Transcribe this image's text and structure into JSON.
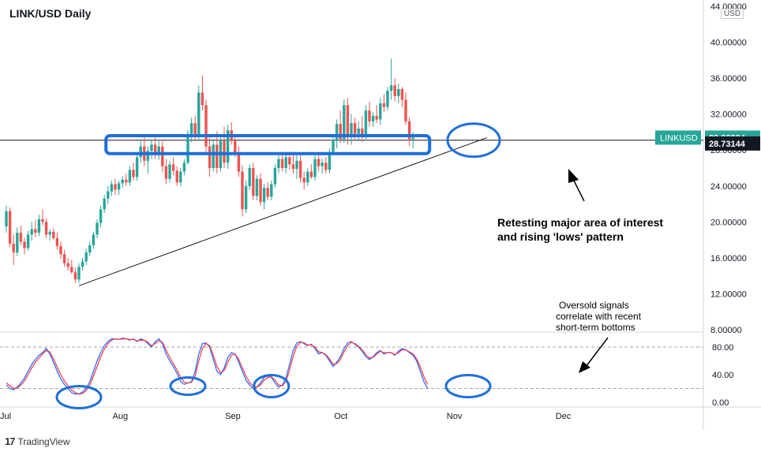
{
  "header": {
    "title": "LINK/USD Daily",
    "currency_badge": "USD"
  },
  "footer": {
    "brand": "TradingView"
  },
  "chart_data": {
    "type": "candlestick",
    "symbol": "LINKUSD",
    "timeframe": "Daily",
    "price_axis": {
      "ylim": [
        8,
        44
      ],
      "ticks": [
        "44.00000",
        "40.00000",
        "36.00000",
        "32.00000",
        "28.00000",
        "24.00000",
        "20.00000",
        "16.00000",
        "12.00000",
        "8.00000"
      ],
      "tick_values": [
        44,
        40,
        36,
        32,
        28,
        24,
        20,
        16,
        12,
        8
      ]
    },
    "time_axis": {
      "ticks": [
        "Jul",
        "Aug",
        "Sep",
        "Oct",
        "Nov",
        "Dec"
      ],
      "tick_days": [
        0,
        31,
        62,
        92,
        123,
        153
      ]
    },
    "price_labels": [
      {
        "text": "LINKUSD",
        "value": "29.38394",
        "price": 29.38394,
        "color": "#26a69a"
      },
      {
        "text": "",
        "value": "28.73144",
        "price": 28.73144,
        "color": "#131722"
      }
    ],
    "horizontal_line": {
      "price": 29.1
    },
    "zone": {
      "from_day": 27,
      "to_day": 117,
      "low": 27.6,
      "high": 29.6
    },
    "trendline": {
      "from": [
        20,
        12.9
      ],
      "to": [
        128,
        29.2
      ]
    },
    "circles": [
      {
        "day": 125,
        "price": 29.1
      }
    ],
    "annotation": "Retesting major area of interest and rising 'lows' pattern",
    "candles": [
      [
        19.5,
        21.8,
        18.8,
        21.2
      ],
      [
        21.2,
        21.6,
        17.2,
        17.6
      ],
      [
        17.6,
        18.6,
        15.2,
        16.6
      ],
      [
        16.6,
        19.4,
        16.2,
        18.8
      ],
      [
        18.8,
        19.6,
        17.4,
        17.8
      ],
      [
        17.8,
        18.2,
        16.4,
        17.1
      ],
      [
        17.1,
        19.0,
        16.8,
        18.6
      ],
      [
        18.6,
        20.0,
        17.9,
        19.2
      ],
      [
        19.2,
        20.2,
        18.3,
        18.8
      ],
      [
        18.8,
        20.8,
        18.4,
        20.3
      ],
      [
        20.3,
        21.4,
        19.6,
        20.0
      ],
      [
        20.0,
        20.4,
        18.2,
        18.6
      ],
      [
        18.6,
        19.2,
        17.9,
        18.9
      ],
      [
        18.9,
        19.3,
        18.0,
        18.2
      ],
      [
        18.2,
        18.8,
        16.9,
        17.3
      ],
      [
        17.3,
        17.8,
        15.9,
        16.4
      ],
      [
        16.4,
        16.9,
        15.0,
        15.4
      ],
      [
        15.4,
        16.0,
        14.6,
        15.0
      ],
      [
        15.0,
        15.8,
        14.2,
        14.4
      ],
      [
        14.4,
        14.9,
        13.2,
        13.6
      ],
      [
        13.6,
        15.4,
        13.2,
        15.0
      ],
      [
        15.0,
        16.0,
        14.6,
        15.6
      ],
      [
        15.6,
        17.0,
        15.2,
        16.6
      ],
      [
        16.6,
        17.8,
        16.2,
        17.4
      ],
      [
        17.4,
        18.9,
        17.0,
        18.6
      ],
      [
        18.6,
        20.3,
        18.2,
        19.9
      ],
      [
        19.9,
        21.8,
        19.4,
        21.4
      ],
      [
        21.4,
        23.0,
        21.0,
        22.6
      ],
      [
        22.6,
        24.0,
        22.0,
        23.4
      ],
      [
        23.4,
        24.6,
        22.9,
        24.2
      ],
      [
        24.2,
        24.8,
        23.0,
        23.6
      ],
      [
        23.6,
        24.6,
        23.0,
        24.3
      ],
      [
        24.3,
        25.1,
        23.8,
        24.7
      ],
      [
        24.7,
        25.4,
        24.0,
        24.4
      ],
      [
        24.4,
        26.2,
        24.0,
        25.8
      ],
      [
        25.8,
        26.6,
        24.6,
        25.0
      ],
      [
        25.0,
        27.6,
        24.6,
        27.2
      ],
      [
        27.2,
        29.0,
        26.6,
        28.4
      ],
      [
        28.4,
        29.4,
        26.2,
        26.8
      ],
      [
        26.8,
        28.4,
        25.4,
        27.9
      ],
      [
        27.9,
        29.2,
        27.0,
        28.6
      ],
      [
        28.6,
        29.4,
        27.0,
        27.5
      ],
      [
        27.5,
        29.0,
        26.9,
        28.4
      ],
      [
        28.4,
        29.0,
        25.6,
        26.2
      ],
      [
        26.2,
        27.0,
        24.2,
        24.8
      ],
      [
        24.8,
        26.8,
        24.4,
        26.4
      ],
      [
        26.4,
        27.2,
        25.2,
        25.7
      ],
      [
        25.7,
        26.2,
        24.0,
        24.4
      ],
      [
        24.4,
        26.0,
        24.0,
        25.6
      ],
      [
        25.6,
        27.0,
        25.2,
        26.6
      ],
      [
        26.6,
        30.2,
        26.4,
        29.8
      ],
      [
        29.8,
        31.6,
        28.9,
        31.0
      ],
      [
        31.0,
        31.8,
        29.0,
        29.6
      ],
      [
        29.6,
        35.2,
        29.2,
        34.4
      ],
      [
        34.4,
        36.3,
        32.4,
        33.0
      ],
      [
        33.0,
        33.6,
        27.6,
        28.4
      ],
      [
        28.4,
        29.6,
        25.0,
        26.0
      ],
      [
        26.0,
        29.2,
        25.6,
        28.6
      ],
      [
        28.6,
        30.1,
        25.4,
        26.0
      ],
      [
        26.0,
        29.4,
        25.6,
        29.0
      ],
      [
        29.0,
        30.6,
        26.0,
        26.6
      ],
      [
        26.6,
        30.8,
        25.9,
        30.2
      ],
      [
        30.2,
        31.1,
        28.6,
        29.0
      ],
      [
        29.0,
        29.8,
        27.2,
        27.6
      ],
      [
        27.6,
        28.4,
        25.0,
        25.6
      ],
      [
        25.6,
        26.3,
        20.6,
        21.4
      ],
      [
        21.4,
        24.6,
        21.0,
        24.0
      ],
      [
        24.0,
        26.4,
        23.6,
        26.0
      ],
      [
        26.0,
        26.6,
        22.4,
        22.9
      ],
      [
        22.9,
        25.2,
        22.4,
        24.8
      ],
      [
        24.8,
        25.4,
        21.8,
        22.2
      ],
      [
        22.2,
        24.2,
        21.4,
        23.8
      ],
      [
        23.8,
        24.4,
        22.4,
        22.8
      ],
      [
        22.8,
        24.6,
        22.4,
        24.2
      ],
      [
        24.2,
        26.4,
        23.8,
        26.0
      ],
      [
        26.0,
        27.4,
        25.4,
        27.0
      ],
      [
        27.0,
        27.8,
        25.6,
        26.0
      ],
      [
        26.0,
        27.6,
        25.4,
        27.2
      ],
      [
        27.2,
        27.8,
        25.8,
        26.4
      ],
      [
        26.4,
        27.6,
        25.4,
        25.9
      ],
      [
        25.9,
        27.4,
        24.8,
        26.8
      ],
      [
        26.8,
        27.6,
        24.4,
        24.9
      ],
      [
        24.9,
        25.6,
        23.6,
        24.4
      ],
      [
        24.4,
        26.0,
        24.0,
        25.6
      ],
      [
        25.6,
        26.4,
        24.8,
        25.0
      ],
      [
        25.0,
        27.4,
        24.6,
        27.0
      ],
      [
        27.0,
        27.6,
        25.6,
        26.2
      ],
      [
        26.2,
        27.0,
        25.4,
        26.6
      ],
      [
        26.6,
        27.2,
        25.4,
        25.8
      ],
      [
        25.8,
        28.2,
        25.4,
        27.8
      ],
      [
        27.8,
        29.4,
        27.4,
        29.0
      ],
      [
        29.0,
        31.4,
        28.2,
        30.9
      ],
      [
        30.9,
        32.4,
        28.8,
        29.2
      ],
      [
        29.2,
        33.6,
        28.8,
        33.0
      ],
      [
        33.0,
        33.8,
        28.6,
        29.4
      ],
      [
        29.4,
        32.0,
        28.6,
        31.0
      ],
      [
        31.0,
        31.6,
        29.0,
        29.8
      ],
      [
        29.8,
        31.2,
        29.0,
        30.4
      ],
      [
        30.4,
        31.8,
        28.9,
        29.6
      ],
      [
        29.6,
        33.0,
        29.2,
        32.4
      ],
      [
        32.4,
        33.4,
        30.6,
        31.2
      ],
      [
        31.2,
        32.2,
        30.6,
        31.8
      ],
      [
        31.8,
        33.0,
        31.0,
        31.4
      ],
      [
        31.4,
        33.8,
        30.8,
        33.2
      ],
      [
        33.2,
        34.2,
        32.2,
        32.8
      ],
      [
        32.8,
        35.0,
        32.4,
        34.6
      ],
      [
        34.6,
        38.2,
        33.6,
        35.2
      ],
      [
        35.2,
        36.0,
        33.4,
        34.0
      ],
      [
        34.0,
        35.4,
        33.2,
        34.8
      ],
      [
        34.8,
        35.0,
        32.8,
        33.6
      ],
      [
        33.6,
        34.4,
        30.8,
        31.2
      ],
      [
        31.2,
        31.6,
        28.4,
        29.2
      ],
      [
        29.2,
        30.0,
        28.2,
        29.38
      ]
    ]
  },
  "oscillator_data": {
    "type": "line",
    "ylim": [
      0,
      100
    ],
    "ticks": [
      "80.00",
      "40.00",
      "0.00"
    ],
    "tick_values": [
      80,
      40,
      0
    ],
    "levels": [
      80,
      20
    ],
    "series": [
      {
        "color": "#2962ff",
        "values": [
          25,
          20,
          18,
          22,
          28,
          35,
          45,
          55,
          62,
          68,
          72,
          78,
          70,
          58,
          45,
          34,
          26,
          20,
          14,
          12,
          12,
          15,
          20,
          30,
          45,
          60,
          72,
          82,
          88,
          92,
          92,
          91,
          93,
          92,
          90,
          92,
          88,
          92,
          90,
          85,
          80,
          88,
          92,
          85,
          70,
          60,
          52,
          42,
          30,
          26,
          28,
          30,
          45,
          70,
          85,
          86,
          80,
          62,
          45,
          40,
          50,
          65,
          72,
          70,
          58,
          45,
          32,
          25,
          20,
          22,
          28,
          36,
          38,
          36,
          28,
          22,
          25,
          35,
          55,
          75,
          86,
          88,
          85,
          82,
          84,
          78,
          70,
          72,
          68,
          60,
          52,
          58,
          66,
          78,
          86,
          88,
          84,
          80,
          74,
          66,
          62,
          66,
          72,
          75,
          70,
          72,
          72,
          68,
          74,
          78,
          76,
          72,
          68,
          60,
          45,
          30,
          20
        ]
      },
      {
        "color": "#f23645",
        "values": [
          28,
          24,
          20,
          21,
          25,
          31,
          40,
          50,
          58,
          64,
          70,
          75,
          73,
          63,
          51,
          40,
          31,
          24,
          18,
          14,
          12,
          13,
          17,
          25,
          38,
          52,
          66,
          77,
          85,
          90,
          92,
          91,
          92,
          92,
          91,
          91,
          89,
          90,
          90,
          87,
          82,
          85,
          89,
          87,
          76,
          65,
          56,
          47,
          36,
          29,
          28,
          29,
          38,
          60,
          78,
          85,
          82,
          68,
          52,
          43,
          46,
          58,
          68,
          70,
          62,
          50,
          38,
          29,
          23,
          22,
          25,
          32,
          36,
          37,
          32,
          25,
          24,
          30,
          47,
          67,
          81,
          87,
          86,
          83,
          83,
          80,
          73,
          72,
          69,
          63,
          55,
          56,
          62,
          73,
          82,
          87,
          85,
          81,
          76,
          69,
          64,
          65,
          70,
          74,
          72,
          72,
          72,
          69,
          72,
          76,
          76,
          73,
          70,
          63,
          51,
          37,
          26
        ]
      }
    ],
    "circles": [
      {
        "day": 20,
        "value": 12
      },
      {
        "day": 50,
        "value": 28
      },
      {
        "day": 73,
        "value": 28
      },
      {
        "day": 125,
        "value": 28
      }
    ],
    "annotation": "Oversold signals correlate with recent short-term bottoms"
  }
}
